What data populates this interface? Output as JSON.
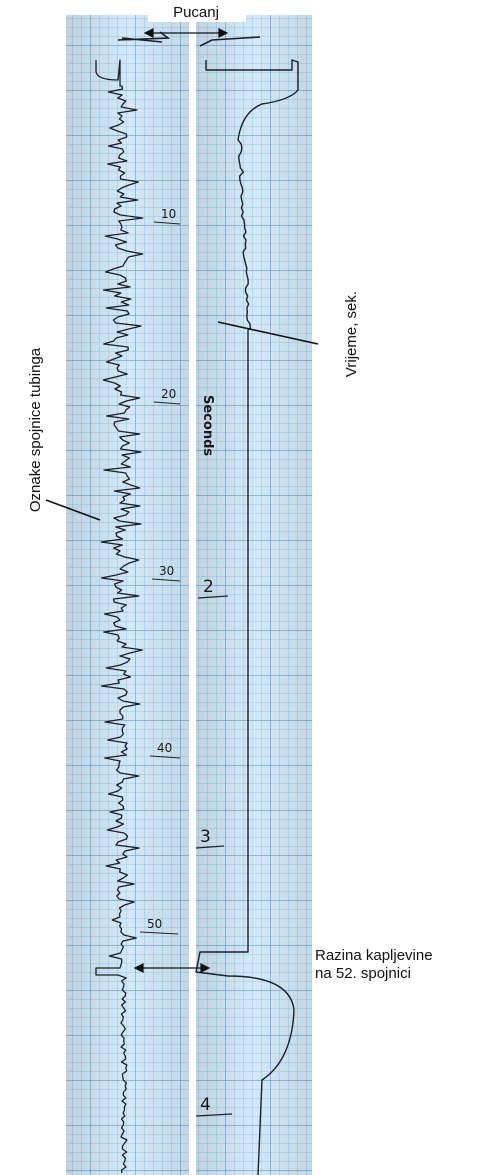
{
  "annotations": {
    "shot": "Pucanj",
    "collar_marks": "Oznake spojnice tubinga",
    "time": "Vrijeme, sek.",
    "fluid_level_line1": "Razina kapljevine",
    "fluid_level_line2": "na 52. spojnici"
  },
  "chart_paper": {
    "seconds_label": "Seconds",
    "collar_numbers": [
      "10",
      "20",
      "30",
      "40",
      "50"
    ],
    "second_numbers": [
      "2",
      "3",
      "4"
    ]
  },
  "colors": {
    "paper": "#cfe6f5",
    "grid": "#7fb6dd",
    "trace": "#1b1f2a",
    "ink": "#222222"
  }
}
